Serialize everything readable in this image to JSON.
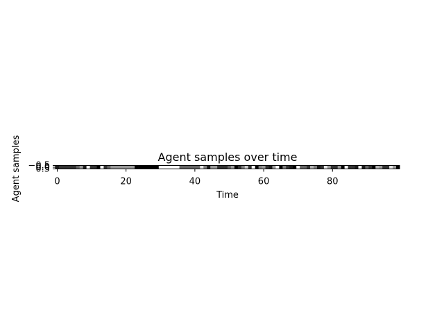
{
  "chart_data": {
    "type": "heatmap",
    "title": "Agent samples over time",
    "xlabel": "Time",
    "ylabel": "Agent samples",
    "colormap": "gray",
    "xlim": [
      -0.5,
      99.5
    ],
    "ylim": [
      0.5,
      -0.5
    ],
    "x_ticks": [
      0,
      20,
      40,
      60,
      80
    ],
    "x_tick_labels": [
      "0",
      "20",
      "40",
      "60",
      "80"
    ],
    "y_ticks": [
      -0.5,
      0.0,
      0.5
    ],
    "y_tick_labels": [
      "−0.5",
      "0.0",
      "0.5"
    ],
    "values": [
      0.1,
      0.2,
      0.2,
      0.2,
      0.2,
      0.2,
      0.4,
      0.6,
      0.1,
      1.0,
      0.2,
      0.2,
      0.0,
      1.0,
      0.2,
      0.4,
      0.6,
      0.6,
      0.6,
      0.6,
      0.6,
      0.6,
      0.6,
      0.0,
      0.0,
      0.0,
      0.0,
      0.0,
      0.0,
      0.0,
      1.0,
      1.0,
      1.0,
      1.0,
      1.0,
      1.0,
      0.4,
      0.4,
      0.4,
      0.4,
      0.4,
      0.4,
      0.9,
      0.5,
      0.1,
      0.6,
      0.6,
      0.2,
      0.2,
      0.2,
      0.4,
      0.6,
      0.0,
      0.2,
      0.5,
      0.8,
      0.2,
      1.0,
      0.0,
      0.5,
      0.6,
      0.2,
      0.1,
      0.6,
      1.0,
      0.0,
      0.5,
      0.2,
      0.1,
      0.0,
      1.0,
      0.4,
      0.4,
      0.2,
      0.7,
      0.5,
      0.1,
      0.2,
      0.9,
      0.6,
      0.2,
      0.2,
      0.6,
      0.0,
      1.0,
      0.2,
      0.2,
      0.1,
      1.0,
      0.1,
      0.4,
      0.2,
      0.0,
      0.7,
      0.6,
      0.2,
      0.2,
      0.9,
      0.6,
      0.0
    ]
  }
}
